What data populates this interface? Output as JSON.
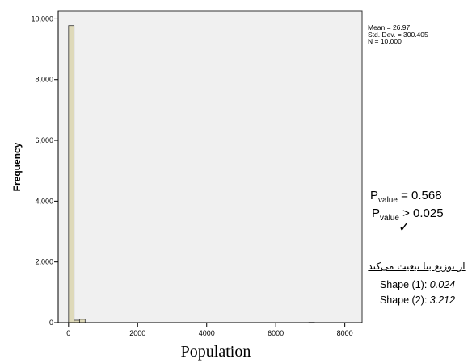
{
  "chart_data": {
    "type": "bar",
    "xlabel": "Population",
    "ylabel": "Frequency",
    "xlim": [
      -300,
      8500
    ],
    "ylim": [
      0,
      10250
    ],
    "x_ticks": [
      0,
      2000,
      4000,
      6000,
      8000
    ],
    "x_tick_labels": [
      "0",
      "2000",
      "4000",
      "6000",
      "8000"
    ],
    "y_ticks": [
      0,
      2000,
      4000,
      6000,
      8000,
      10000
    ],
    "y_tick_labels": [
      "0",
      "2,000",
      "4,000",
      "6,000",
      "8,000",
      "10,000"
    ],
    "bin_width": 160,
    "bins": [
      {
        "x0": 0,
        "x1": 160,
        "count": 9780
      },
      {
        "x0": 160,
        "x1": 320,
        "count": 80
      },
      {
        "x0": 320,
        "x1": 480,
        "count": 110
      },
      {
        "x0": 6960,
        "x1": 7120,
        "count": 8
      }
    ],
    "bar_fill": "#ded9b9",
    "bar_stroke": "#333333",
    "plot_background": "#f0f0f0",
    "grid": false,
    "legend": "none",
    "stats": {
      "mean": "Mean = 26.97",
      "std": "Std. Dev. = 300.405",
      "n": "N = 10,000"
    }
  },
  "annotations": {
    "pvalue_base": "P",
    "pvalue_sub": "value",
    "pvalue_line1_rest": " = 0.568",
    "pvalue_line2_rest": " > 0.025",
    "checkmark": "✓",
    "persian_text": "از توزیع بتا تبعیت می‌کند",
    "shape1_label": "Shape (1): ",
    "shape1_value": "0.024",
    "shape2_label": "Shape (2): ",
    "shape2_value": "3.212"
  }
}
